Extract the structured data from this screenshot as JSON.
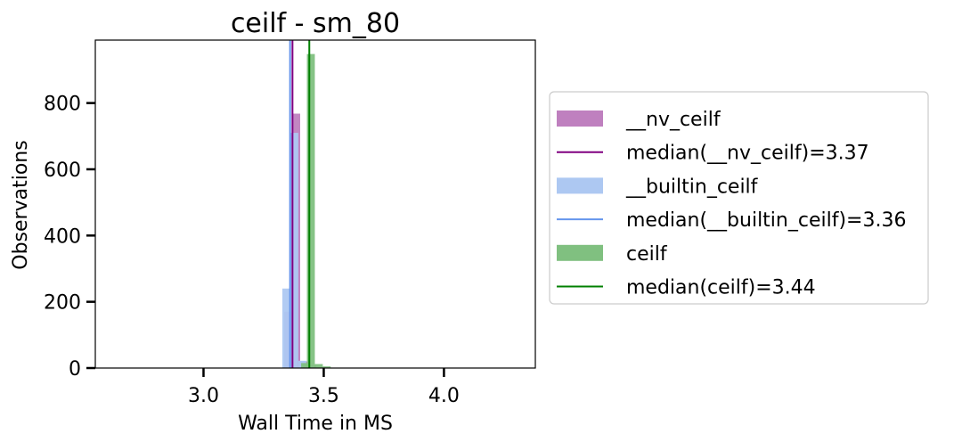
{
  "chart_data": {
    "type": "bar",
    "title": "ceilf - sm_80",
    "xlabel": "Wall Time in MS",
    "ylabel": "Observations",
    "xlim": [
      2.55,
      4.38
    ],
    "ylim": [
      0,
      990
    ],
    "xticks": [
      3.0,
      3.5,
      4.0
    ],
    "xtick_labels": [
      "3.0",
      "3.5",
      "4.0"
    ],
    "yticks": [
      0,
      200,
      400,
      600,
      800
    ],
    "ytick_labels": [
      "0",
      "200",
      "400",
      "600",
      "800"
    ],
    "grid": false,
    "legend_placement": "outside-right",
    "bin_width": 0.033,
    "series": [
      {
        "name": "__nv_ceilf",
        "color": "#bf80bf",
        "bins": [
          {
            "x0": 3.336,
            "count": 170
          },
          {
            "x0": 3.369,
            "count": 768
          },
          {
            "x0": 3.402,
            "count": 20
          },
          {
            "x0": 3.435,
            "count": 8
          }
        ],
        "median": 3.37,
        "median_label": "median(__nv_ceilf)=3.37",
        "median_color": "#800080"
      },
      {
        "name": "__builtin_ceilf",
        "color": "#adc8f2",
        "bins": [
          {
            "x0": 3.328,
            "count": 240
          },
          {
            "x0": 3.361,
            "count": 710
          },
          {
            "x0": 3.394,
            "count": 22
          },
          {
            "x0": 3.427,
            "count": 5
          }
        ],
        "median": 3.36,
        "median_label": "median(__builtin_ceilf)=3.36",
        "median_color": "#6495ed"
      },
      {
        "name": "ceilf",
        "color": "#80c080",
        "bins": [
          {
            "x0": 3.406,
            "count": 15
          },
          {
            "x0": 3.43,
            "count": 948
          },
          {
            "x0": 3.463,
            "count": 12
          },
          {
            "x0": 3.496,
            "count": 5
          }
        ],
        "median": 3.44,
        "median_label": "median(ceilf)=3.44",
        "median_color": "#008000"
      }
    ]
  }
}
